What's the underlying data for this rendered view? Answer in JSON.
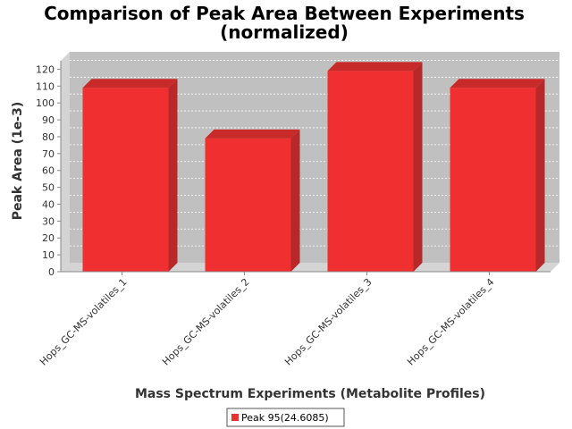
{
  "chart_data": {
    "type": "bar",
    "title_line1": "Comparison of Peak Area Between Experiments",
    "title_line2": "(normalized)",
    "xlabel": "Mass Spectrum Experiments (Metabolite Profiles)",
    "ylabel": "Peak Area (1e-3)",
    "categories": [
      "Hops_GC-MS-volatiles_1",
      "Hops_GC-MS-volatiles_2",
      "Hops_GC-MS-volatiles_3",
      "Hops_GC-MS-volatiles_4"
    ],
    "series": [
      {
        "name": "Peak 95(24.6085)",
        "values": [
          109,
          79,
          119,
          109
        ]
      }
    ],
    "ylim": [
      0,
      125
    ],
    "yticks": [
      0,
      10,
      20,
      30,
      40,
      50,
      60,
      70,
      80,
      90,
      100,
      110,
      120
    ],
    "grid": true,
    "legend_position": "bottom",
    "colors": {
      "bar_front": "#f03030",
      "bar_top": "#c82a2a",
      "bar_side": "#b82828",
      "plot_bg": "#c0c0c0",
      "wall": "#d4d4d4",
      "grid": "#ffffff"
    }
  }
}
